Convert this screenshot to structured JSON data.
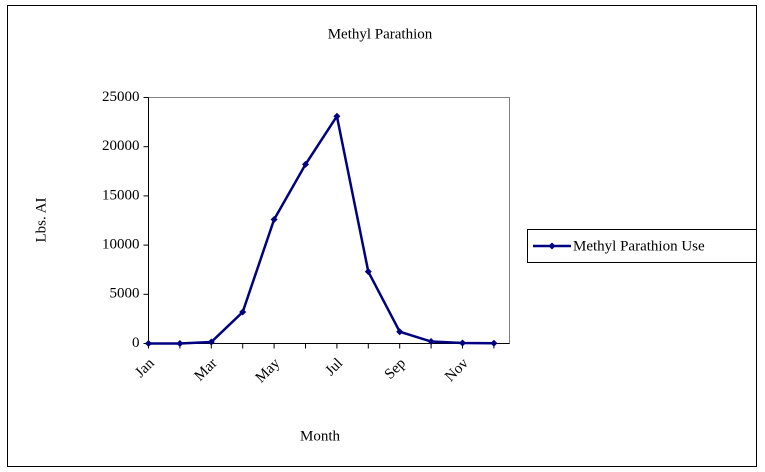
{
  "chart_data": {
    "type": "line",
    "title": "Methyl Parathion",
    "x_label": "Month",
    "y_label": "Lbs. AI",
    "categories": [
      "Jan",
      null,
      "Mar",
      null,
      "May",
      null,
      "Jul",
      null,
      "Sep",
      null,
      "Nov",
      null
    ],
    "series": [
      {
        "name": "Methyl Parathion Use",
        "color": "#000080",
        "values": [
          0,
          0,
          150,
          3200,
          12600,
          18200,
          23100,
          7300,
          1200,
          200,
          50,
          30
        ]
      }
    ],
    "ylim": [
      0,
      25000
    ],
    "yticks": [
      0,
      5000,
      10000,
      15000,
      20000,
      25000
    ],
    "grid": false,
    "legend": "right"
  }
}
